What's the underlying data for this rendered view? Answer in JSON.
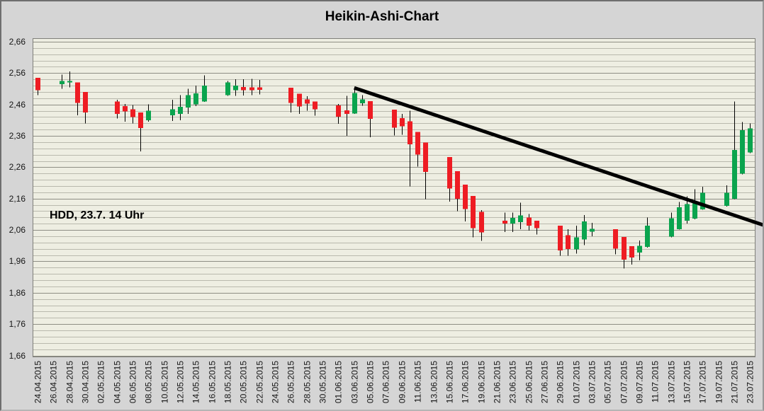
{
  "chart_data": {
    "type": "candlestick",
    "subtype": "heikin-ashi",
    "title": "Heikin-Ashi-Chart",
    "annotation": {
      "text": "HDD, 23.7. 14 Uhr",
      "anchor_date": "26.04.2015",
      "anchor_value": 2.1
    },
    "y_axis": {
      "min": 1.66,
      "max": 2.66,
      "major_step": 0.1,
      "minor_step": 0.02,
      "tick_labels": [
        "2,66",
        "2,56",
        "2,46",
        "2,36",
        "2,26",
        "2,16",
        "2,06",
        "1,96",
        "1,86",
        "1,76",
        "1,66"
      ]
    },
    "x_axis": {
      "start_date": "24.04.2015",
      "end_date": "23.07.2015",
      "tick_interval_days": 2,
      "tick_labels": [
        "24.04.2015",
        "26.04.2015",
        "28.04.2015",
        "30.04.2015",
        "02.05.2015",
        "04.05.2015",
        "06.05.2015",
        "08.05.2015",
        "10.05.2015",
        "12.05.2015",
        "14.05.2015",
        "16.05.2015",
        "18.05.2015",
        "20.05.2015",
        "22.05.2015",
        "24.05.2015",
        "26.05.2015",
        "28.05.2015",
        "30.05.2015",
        "01.06.2015",
        "03.06.2015",
        "05.06.2015",
        "07.06.2015",
        "09.06.2015",
        "11.06.2015",
        "13.06.2015",
        "15.06.2015",
        "17.06.2015",
        "19.06.2015",
        "21.06.2015",
        "23.06.2015",
        "25.06.2015",
        "27.06.2015",
        "29.06.2015",
        "01.07.2015",
        "03.07.2015",
        "05.07.2015",
        "07.07.2015",
        "09.07.2015",
        "11.07.2015",
        "13.07.2015",
        "15.07.2015",
        "17.07.2015",
        "19.07.2015",
        "21.07.2015",
        "23.07.2015"
      ]
    },
    "grid": {
      "minor_lines": true,
      "major_lines": true
    },
    "colors": {
      "up": "#0aa44e",
      "down": "#ee1c23",
      "wick": "#000000",
      "trendline": "#000000",
      "plot_background": "#eeeee2",
      "outer_background": "#d5d5d5",
      "grid_minor": "#b9b9ad",
      "grid_major": "#8e8e84",
      "plot_border": "#80807a",
      "axis_text": "#141414"
    },
    "trendline": {
      "start_date": "03.06.2015",
      "start_value": 2.513,
      "end_date": "25.07.2015",
      "end_value": 2.073,
      "stroke_width": 5,
      "note": "extends past right plot edge to image border"
    },
    "candles": [
      {
        "date": "24.04.2015",
        "open": 2.545,
        "high": 2.545,
        "low": 2.49,
        "close": 2.505
      },
      {
        "date": "27.04.2015",
        "open": 2.525,
        "high": 2.555,
        "low": 2.51,
        "close": 2.535
      },
      {
        "date": "28.04.2015",
        "open": 2.53,
        "high": 2.565,
        "low": 2.515,
        "close": 2.535
      },
      {
        "date": "29.04.2015",
        "open": 2.53,
        "high": 2.53,
        "low": 2.425,
        "close": 2.465
      },
      {
        "date": "30.04.2015",
        "open": 2.5,
        "high": 2.5,
        "low": 2.4,
        "close": 2.435
      },
      {
        "date": "04.05.2015",
        "open": 2.47,
        "high": 2.475,
        "low": 2.415,
        "close": 2.43
      },
      {
        "date": "05.05.2015",
        "open": 2.455,
        "high": 2.462,
        "low": 2.405,
        "close": 2.438
      },
      {
        "date": "06.05.2015",
        "open": 2.445,
        "high": 2.458,
        "low": 2.4,
        "close": 2.42
      },
      {
        "date": "07.05.2015",
        "open": 2.435,
        "high": 2.435,
        "low": 2.31,
        "close": 2.385
      },
      {
        "date": "08.05.2015",
        "open": 2.41,
        "high": 2.46,
        "low": 2.405,
        "close": 2.44
      },
      {
        "date": "11.05.2015",
        "open": 2.425,
        "high": 2.475,
        "low": 2.407,
        "close": 2.445
      },
      {
        "date": "12.05.2015",
        "open": 2.43,
        "high": 2.49,
        "low": 2.41,
        "close": 2.452
      },
      {
        "date": "13.05.2015",
        "open": 2.45,
        "high": 2.51,
        "low": 2.43,
        "close": 2.49
      },
      {
        "date": "14.05.2015",
        "open": 2.46,
        "high": 2.52,
        "low": 2.455,
        "close": 2.495
      },
      {
        "date": "15.05.2015",
        "open": 2.47,
        "high": 2.553,
        "low": 2.468,
        "close": 2.52
      },
      {
        "date": "18.05.2015",
        "open": 2.49,
        "high": 2.535,
        "low": 2.488,
        "close": 2.53
      },
      {
        "date": "19.05.2015",
        "open": 2.505,
        "high": 2.54,
        "low": 2.487,
        "close": 2.52
      },
      {
        "date": "20.05.2015",
        "open": 2.516,
        "high": 2.54,
        "low": 2.489,
        "close": 2.506
      },
      {
        "date": "21.05.2015",
        "open": 2.515,
        "high": 2.542,
        "low": 2.49,
        "close": 2.505
      },
      {
        "date": "22.05.2015",
        "open": 2.515,
        "high": 2.538,
        "low": 2.492,
        "close": 2.507
      },
      {
        "date": "26.05.2015",
        "open": 2.513,
        "high": 2.513,
        "low": 2.435,
        "close": 2.465
      },
      {
        "date": "27.05.2015",
        "open": 2.494,
        "high": 2.494,
        "low": 2.43,
        "close": 2.454
      },
      {
        "date": "28.05.2015",
        "open": 2.476,
        "high": 2.486,
        "low": 2.44,
        "close": 2.463
      },
      {
        "date": "29.05.2015",
        "open": 2.47,
        "high": 2.47,
        "low": 2.424,
        "close": 2.445
      },
      {
        "date": "01.06.2015",
        "open": 2.457,
        "high": 2.462,
        "low": 2.399,
        "close": 2.421
      },
      {
        "date": "02.06.2015",
        "open": 2.441,
        "high": 2.488,
        "low": 2.36,
        "close": 2.43
      },
      {
        "date": "03.06.2015",
        "open": 2.431,
        "high": 2.513,
        "low": 2.43,
        "close": 2.497
      },
      {
        "date": "04.06.2015",
        "open": 2.464,
        "high": 2.49,
        "low": 2.456,
        "close": 2.476
      },
      {
        "date": "05.06.2015",
        "open": 2.471,
        "high": 2.471,
        "low": 2.356,
        "close": 2.414
      },
      {
        "date": "08.06.2015",
        "open": 2.444,
        "high": 2.444,
        "low": 2.361,
        "close": 2.386
      },
      {
        "date": "09.06.2015",
        "open": 2.416,
        "high": 2.43,
        "low": 2.364,
        "close": 2.391
      },
      {
        "date": "10.06.2015",
        "open": 2.406,
        "high": 2.44,
        "low": 2.199,
        "close": 2.333
      },
      {
        "date": "11.06.2015",
        "open": 2.373,
        "high": 2.373,
        "low": 2.262,
        "close": 2.3
      },
      {
        "date": "12.06.2015",
        "open": 2.339,
        "high": 2.339,
        "low": 2.158,
        "close": 2.245
      },
      {
        "date": "15.06.2015",
        "open": 2.293,
        "high": 2.293,
        "low": 2.15,
        "close": 2.192
      },
      {
        "date": "16.06.2015",
        "open": 2.247,
        "high": 2.247,
        "low": 2.12,
        "close": 2.16
      },
      {
        "date": "17.06.2015",
        "open": 2.205,
        "high": 2.205,
        "low": 2.087,
        "close": 2.127
      },
      {
        "date": "18.06.2015",
        "open": 2.169,
        "high": 2.169,
        "low": 2.036,
        "close": 2.066
      },
      {
        "date": "19.06.2015",
        "open": 2.118,
        "high": 2.123,
        "low": 2.025,
        "close": 2.052
      },
      {
        "date": "22.06.2015",
        "open": 2.09,
        "high": 2.115,
        "low": 2.054,
        "close": 2.081
      },
      {
        "date": "23.06.2015",
        "open": 2.081,
        "high": 2.115,
        "low": 2.053,
        "close": 2.098
      },
      {
        "date": "24.06.2015",
        "open": 2.085,
        "high": 2.147,
        "low": 2.063,
        "close": 2.107
      },
      {
        "date": "25.06.2015",
        "open": 2.1,
        "high": 2.111,
        "low": 2.058,
        "close": 2.074
      },
      {
        "date": "26.06.2015",
        "open": 2.09,
        "high": 2.09,
        "low": 2.046,
        "close": 2.066
      },
      {
        "date": "29.06.2015",
        "open": 2.074,
        "high": 2.074,
        "low": 1.978,
        "close": 1.995
      },
      {
        "date": "30.06.2015",
        "open": 2.043,
        "high": 2.063,
        "low": 1.978,
        "close": 1.999
      },
      {
        "date": "01.07.2015",
        "open": 1.998,
        "high": 2.074,
        "low": 1.985,
        "close": 2.037
      },
      {
        "date": "02.07.2015",
        "open": 2.03,
        "high": 2.108,
        "low": 2.012,
        "close": 2.087
      },
      {
        "date": "03.07.2015",
        "open": 2.055,
        "high": 2.083,
        "low": 2.04,
        "close": 2.064
      },
      {
        "date": "06.07.2015",
        "open": 2.063,
        "high": 2.063,
        "low": 1.982,
        "close": 2.001
      },
      {
        "date": "07.07.2015",
        "open": 2.038,
        "high": 2.038,
        "low": 1.937,
        "close": 1.965
      },
      {
        "date": "08.07.2015",
        "open": 2.008,
        "high": 2.008,
        "low": 1.95,
        "close": 1.972
      },
      {
        "date": "09.07.2015",
        "open": 1.988,
        "high": 2.026,
        "low": 1.963,
        "close": 2.01
      },
      {
        "date": "10.07.2015",
        "open": 2.006,
        "high": 2.1,
        "low": 2.004,
        "close": 2.074
      },
      {
        "date": "13.07.2015",
        "open": 2.039,
        "high": 2.115,
        "low": 2.037,
        "close": 2.097
      },
      {
        "date": "14.07.2015",
        "open": 2.063,
        "high": 2.149,
        "low": 2.061,
        "close": 2.132
      },
      {
        "date": "15.07.2015",
        "open": 2.09,
        "high": 2.167,
        "low": 2.081,
        "close": 2.142
      },
      {
        "date": "16.07.2015",
        "open": 2.096,
        "high": 2.19,
        "low": 2.094,
        "close": 2.145
      },
      {
        "date": "17.07.2015",
        "open": 2.126,
        "high": 2.198,
        "low": 2.124,
        "close": 2.179
      },
      {
        "date": "20.07.2015",
        "open": 2.137,
        "high": 2.202,
        "low": 2.135,
        "close": 2.179
      },
      {
        "date": "21.07.2015",
        "open": 2.16,
        "high": 2.469,
        "low": 2.158,
        "close": 2.315
      },
      {
        "date": "22.07.2015",
        "open": 2.239,
        "high": 2.404,
        "low": 2.237,
        "close": 2.378
      },
      {
        "date": "23.07.2015",
        "open": 2.307,
        "high": 2.4,
        "low": 2.305,
        "close": 2.384
      }
    ]
  }
}
